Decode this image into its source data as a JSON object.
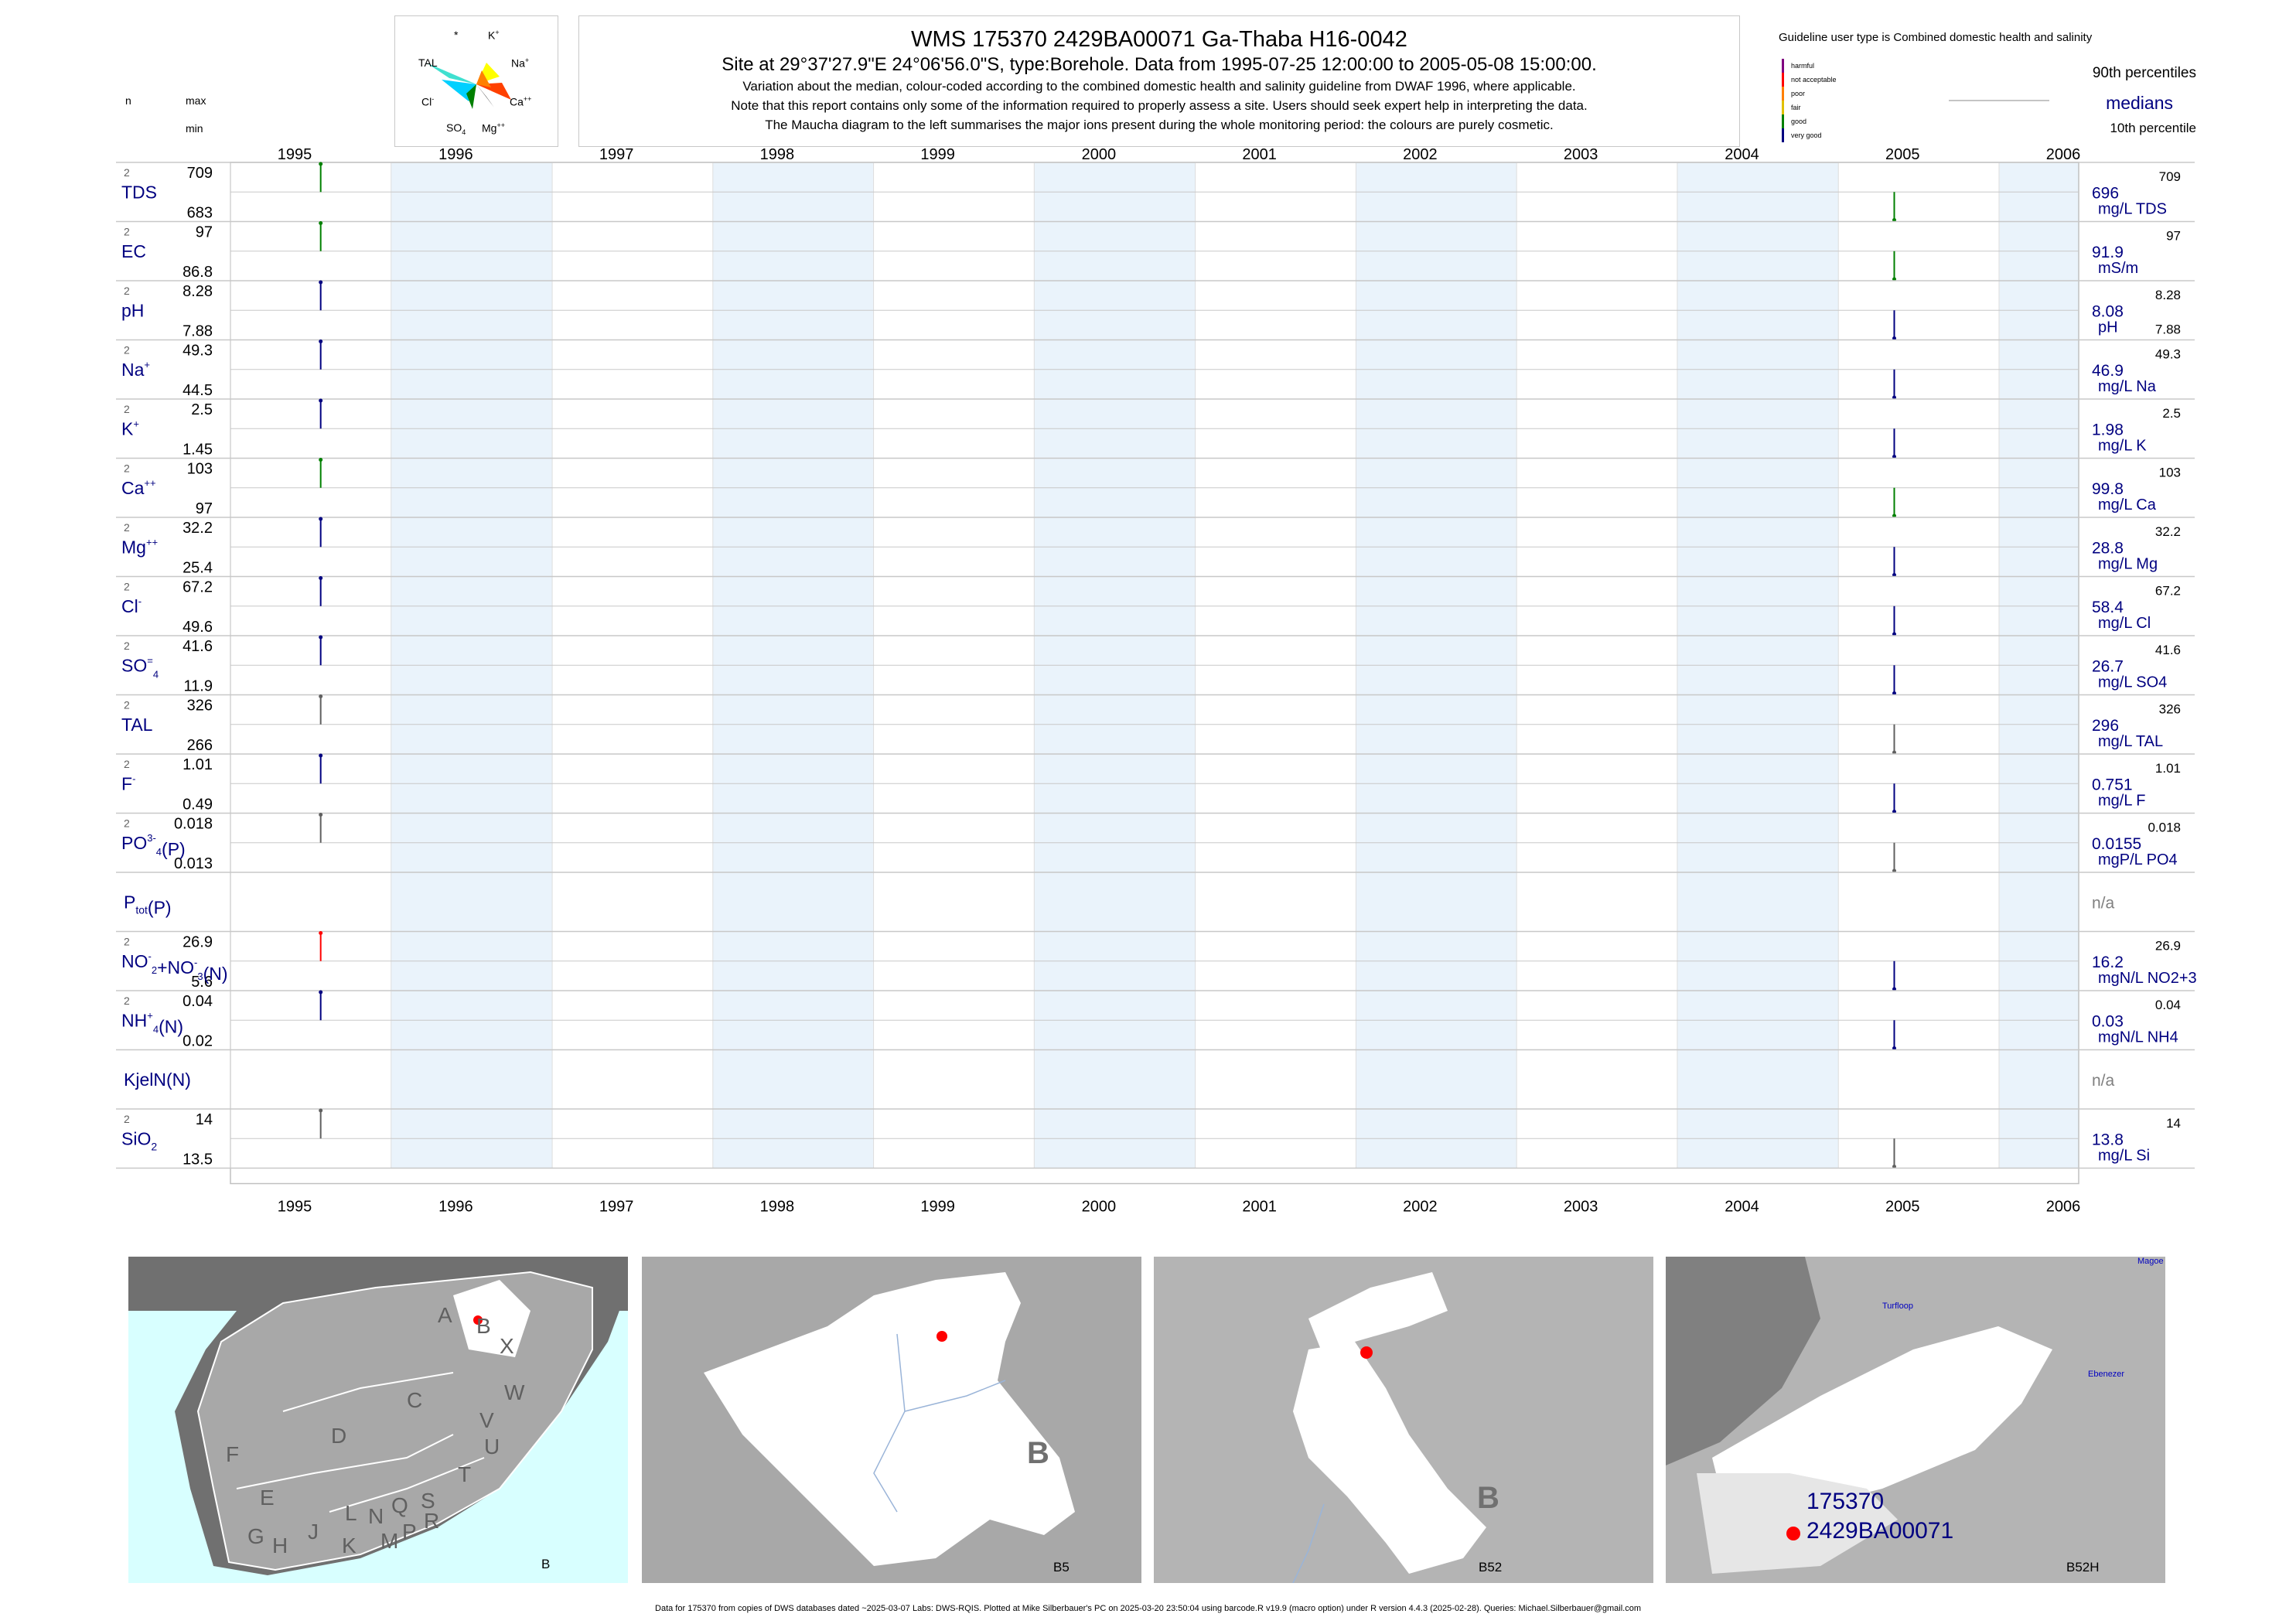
{
  "header": {
    "title": "WMS 175370 2429BA00071 Ga-Thaba H16-0042",
    "site_line": "Site at 29°37'27.9\"E 24°06'56.0\"S, type:Borehole.  Data from 1995-07-25 12:00:00 to 2005-05-08 15:00:00.",
    "note1": "Variation about the median,  colour-coded according to the combined domestic health and salinity guideline from DWAF 1996, where applicable.",
    "note2": "Note that this report contains only some of the information required to properly assess a site. Users should seek expert help in interpreting the data.",
    "note3": "The Maucha diagram to the left summarises the major ions present during the whole monitoring period: the colours are purely cosmetic."
  },
  "maucha": {
    "labels": {
      "star": "*",
      "k": "K",
      "tal": "TAL",
      "na": "Na",
      "cl": "Cl",
      "ca": "Ca",
      "so4": "SO",
      "mg": "Mg"
    },
    "colors": [
      "#00d0ff",
      "#40e0d0",
      "#ffff00",
      "#ff8000",
      "#ff0000",
      "#c0c0c0",
      "#008000",
      "#606060"
    ]
  },
  "legend": {
    "guideline": "Guideline user type is Combined domestic health and salinity",
    "categories": [
      {
        "label": "harmful",
        "color": "#800080"
      },
      {
        "label": "not acceptable",
        "color": "#ff0000"
      },
      {
        "label": "poor",
        "color": "#ff8000"
      },
      {
        "label": "fair",
        "color": "#e0c000"
      },
      {
        "label": "good",
        "color": "#008000"
      },
      {
        "label": "very good",
        "color": "#000080"
      }
    ],
    "p90": "90th percentiles",
    "medians": "medians",
    "p10": "10th percentile"
  },
  "column_headers": {
    "n": "n",
    "max": "max",
    "min": "min"
  },
  "chart_data": {
    "type": "line",
    "x_ticks": [
      "1995",
      "1996",
      "1997",
      "1998",
      "1999",
      "2000",
      "2001",
      "2002",
      "2003",
      "2004",
      "2005",
      "2006"
    ],
    "xlim": [
      "1995-01-01",
      "2006-07-01"
    ],
    "sample_dates": [
      "1995-07-25",
      "2005-05-08"
    ],
    "rows": [
      {
        "label": "TDS",
        "n": "2",
        "max": "709",
        "min": "683",
        "median": "696",
        "unit": "mg/L TDS",
        "color1": "#008000",
        "color2": "#008000"
      },
      {
        "label": "EC",
        "n": "2",
        "max": "97",
        "min": "86.8",
        "median": "91.9",
        "unit": "mS/m",
        "color1": "#008000",
        "color2": "#008000"
      },
      {
        "label": "pH",
        "n": "2",
        "max": "8.28",
        "min": "7.88",
        "median": "8.08",
        "unit": "pH",
        "color1": "#000080",
        "color2": "#000080"
      },
      {
        "label": "Na",
        "sup": "+",
        "n": "2",
        "max": "49.3",
        "min": "44.5",
        "median": "46.9",
        "unit": "mg/L Na",
        "color1": "#000080",
        "color2": "#000080"
      },
      {
        "label": "K",
        "sup": "+",
        "n": "2",
        "max": "2.5",
        "min": "1.45",
        "median": "1.98",
        "unit": "mg/L K",
        "color1": "#000080",
        "color2": "#000080"
      },
      {
        "label": "Ca",
        "sup": "++",
        "n": "2",
        "max": "103",
        "min": "97",
        "median": "99.8",
        "unit": "mg/L Ca",
        "color1": "#008000",
        "color2": "#008000"
      },
      {
        "label": "Mg",
        "sup": "++",
        "n": "2",
        "max": "32.2",
        "min": "25.4",
        "median": "28.8",
        "unit": "mg/L Mg",
        "color1": "#000080",
        "color2": "#000080"
      },
      {
        "label": "Cl",
        "sup": "-",
        "n": "2",
        "max": "67.2",
        "min": "49.6",
        "median": "58.4",
        "unit": "mg/L Cl",
        "color1": "#000080",
        "color2": "#000080"
      },
      {
        "label": "SO",
        "sub": "4",
        "sup": "=",
        "n": "2",
        "max": "41.6",
        "min": "11.9",
        "median": "26.7",
        "unit": "mg/L SO4",
        "color1": "#000080",
        "color2": "#000080"
      },
      {
        "label": "TAL",
        "n": "2",
        "max": "326",
        "min": "266",
        "median": "296",
        "unit": "mg/L TAL",
        "color1": "#606060",
        "color2": "#606060"
      },
      {
        "label": "F",
        "sup": "-",
        "n": "2",
        "max": "1.01",
        "min": "0.49",
        "median": "0.751",
        "unit": "mg/L F",
        "color1": "#000080",
        "color2": "#000080"
      },
      {
        "label": "PO",
        "sub": "4",
        "sup": "3-",
        "tail": "(P)",
        "n": "2",
        "max": "0.018",
        "min": "0.013",
        "median": "0.0155",
        "unit": "mgP/L PO4",
        "color1": "#606060",
        "color2": "#606060"
      },
      {
        "label": "P",
        "sub": "tot",
        "tail": "(P)",
        "n": "",
        "max": "",
        "min": "",
        "median": "n/a",
        "unit": "",
        "color1": "",
        "color2": ""
      },
      {
        "label": "NO",
        "sub": "2",
        "sup": "-",
        "tail": "+NO",
        "sub2": "3",
        "sup2": "-",
        "tail2": "(N)",
        "n": "2",
        "max": "26.9",
        "min": "5.6",
        "median": "16.2",
        "unit": "mgN/L NO2+3",
        "color1": "#ff0000",
        "color2": "#000080"
      },
      {
        "label": "NH",
        "sub": "4",
        "sup": "+",
        "tail": "(N)",
        "n": "2",
        "max": "0.04",
        "min": "0.02",
        "median": "0.03",
        "unit": "mgN/L NH4",
        "color1": "#000080",
        "color2": "#000080"
      },
      {
        "label": "KjelN(N)",
        "n": "",
        "max": "",
        "min": "",
        "median": "n/a",
        "unit": "",
        "color1": "",
        "color2": ""
      },
      {
        "label": "SiO",
        "sub": "2",
        "n": "2",
        "max": "14",
        "min": "13.5",
        "median": "13.8",
        "unit": "mg/L Si",
        "color1": "#606060",
        "color2": "#606060"
      }
    ]
  },
  "maps": [
    {
      "caption": "B",
      "letters": [
        "A",
        "B",
        "X",
        "C",
        "W",
        "D",
        "V",
        "U",
        "F",
        "T",
        "E",
        "L",
        "N",
        "Q",
        "S",
        "R",
        "G",
        "H",
        "J",
        "K",
        "M",
        "P"
      ]
    },
    {
      "caption": "B5",
      "region": "B"
    },
    {
      "caption": "B52",
      "region": "B"
    },
    {
      "caption": "B52H",
      "site_id": "175370",
      "site_code": "2429BA00071",
      "places": [
        "Turfloop",
        "Ebenezer",
        "Magoe"
      ]
    }
  ],
  "footer": "Data for 175370 from copies of DWS databases dated ~2025-03-07 Labs: DWS-RQIS. Plotted at Mike Silberbauer's PC on 2025-03-20 23:50:04 using barcode.R v19.9 (macro option) under R version 4.4.3 (2025-02-28). Queries: Michael.Silberbauer@gmail.com"
}
